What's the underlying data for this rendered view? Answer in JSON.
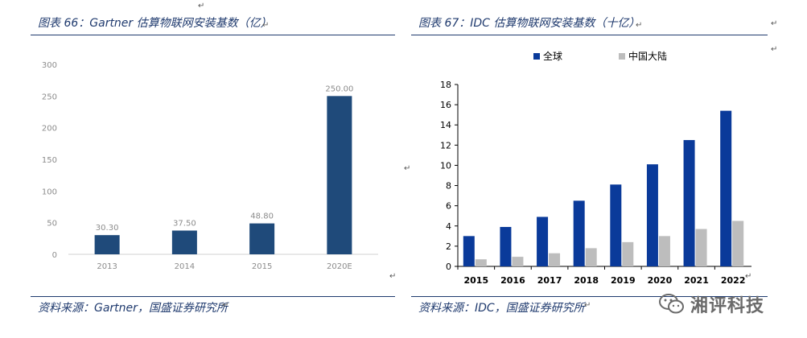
{
  "left": {
    "title": "图表 66：Gartner 估算物联网安装基数（亿）",
    "source": "资料来源：Gartner，国盛证券研究所",
    "chart_data": {
      "type": "bar",
      "categories": [
        "2013",
        "2014",
        "2015",
        "2020E"
      ],
      "values": [
        30.3,
        37.5,
        48.8,
        250.0
      ],
      "value_labels": [
        "30.30",
        "37.50",
        "48.80",
        "250.00"
      ],
      "ylim": [
        0,
        300
      ],
      "yticks": [
        "0",
        "50",
        "100",
        "150",
        "200",
        "250",
        "300"
      ],
      "grid": false,
      "bar_color": "#1f4a7a"
    }
  },
  "right": {
    "title": "图表 67：IDC 估算物联网安装基数（十亿）",
    "source": "资料来源：IDC，国盛证券研究所",
    "chart_data": {
      "type": "bar",
      "categories": [
        "2015",
        "2016",
        "2017",
        "2018",
        "2019",
        "2020",
        "2021",
        "2022"
      ],
      "series": [
        {
          "name": "全球",
          "color": "#0a3a9a",
          "values": [
            3.0,
            3.9,
            4.9,
            6.5,
            8.1,
            10.1,
            12.5,
            15.4
          ]
        },
        {
          "name": "中国大陆",
          "color": "#bdbdbd",
          "values": [
            0.7,
            0.95,
            1.3,
            1.8,
            2.4,
            3.0,
            3.7,
            4.5
          ]
        }
      ],
      "ylim": [
        0,
        18
      ],
      "yticks": [
        "0",
        "2",
        "4",
        "6",
        "8",
        "10",
        "12",
        "14",
        "16",
        "18"
      ],
      "legend": "top",
      "grid": false
    }
  },
  "watermark": {
    "text": "湘评科技",
    "icon": "wechat-icon"
  },
  "para_mark": "↵"
}
